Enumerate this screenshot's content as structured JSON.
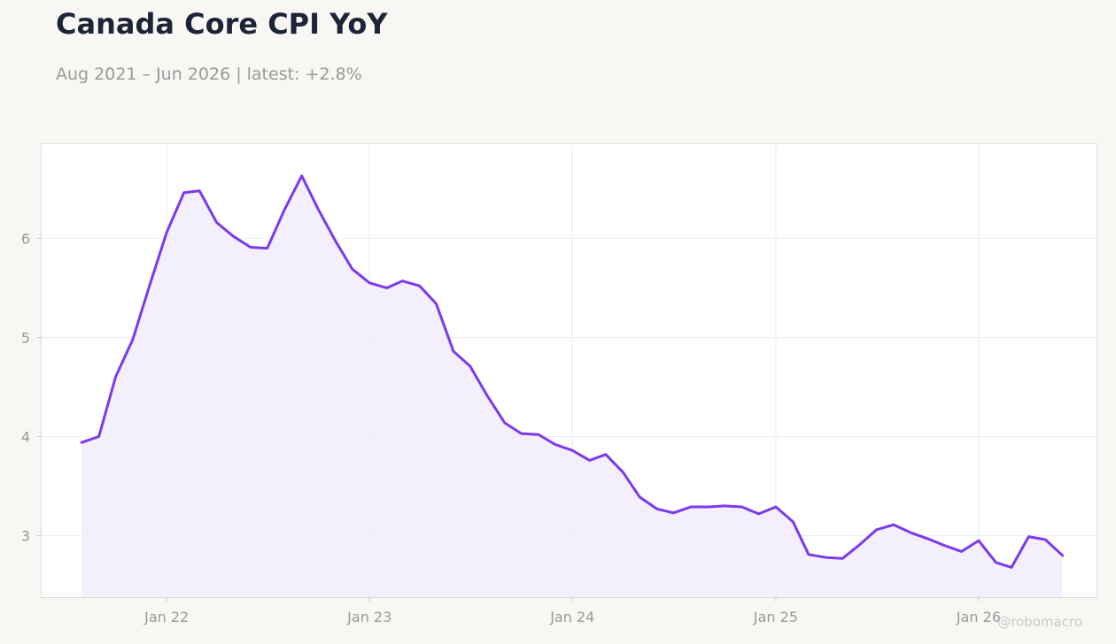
{
  "header": {
    "title": "Canada Core CPI YoY",
    "subtitle": "Aug 2021 – Jun 2026 | latest: +2.8%"
  },
  "watermark": "@robomacro",
  "colors": {
    "line": "#7c3aed",
    "fill": "#f1ecfc",
    "grid": "#eeeeee",
    "background": "#f9f7f4",
    "plot_background": "#ffffff"
  },
  "chart_data": {
    "type": "area",
    "title": "Canada Core CPI YoY",
    "xlabel": "",
    "ylabel": "",
    "ylim": [
      2.38,
      6.95
    ],
    "xlim": [
      "2021-05-21",
      "2026-08-01"
    ],
    "grid": true,
    "x_ticks": [
      {
        "date": "2022-01-01",
        "label": "Jan 22"
      },
      {
        "date": "2023-01-01",
        "label": "Jan 23"
      },
      {
        "date": "2024-01-01",
        "label": "Jan 24"
      },
      {
        "date": "2025-01-01",
        "label": "Jan 25"
      },
      {
        "date": "2026-01-01",
        "label": "Jan 26"
      }
    ],
    "y_ticks": [
      3,
      4,
      5,
      6
    ],
    "series": [
      {
        "x": [
          "2021-08",
          "2021-09",
          "2021-10",
          "2021-11",
          "2021-12",
          "2022-01",
          "2022-02",
          "2022-03",
          "2022-04",
          "2022-05",
          "2022-06",
          "2022-07",
          "2022-08",
          "2022-09",
          "2022-10",
          "2022-11",
          "2022-12",
          "2023-01",
          "2023-02",
          "2023-03",
          "2023-04",
          "2023-05",
          "2023-06",
          "2023-07",
          "2023-08",
          "2023-09",
          "2023-10",
          "2023-11",
          "2023-12",
          "2024-01",
          "2024-02",
          "2024-03",
          "2024-04",
          "2024-05",
          "2024-06",
          "2024-07",
          "2024-08",
          "2024-09",
          "2024-10",
          "2024-11",
          "2024-12",
          "2025-01",
          "2025-02",
          "2025-03",
          "2025-04",
          "2025-05",
          "2025-06",
          "2025-07",
          "2025-08",
          "2025-09",
          "2025-10",
          "2025-11",
          "2025-12",
          "2026-01",
          "2026-02",
          "2026-03",
          "2026-04",
          "2026-05",
          "2026-06"
        ],
        "values": [
          3.94,
          4.0,
          4.6,
          4.98,
          5.52,
          6.06,
          6.46,
          6.48,
          6.16,
          6.02,
          5.91,
          5.9,
          6.29,
          6.63,
          6.29,
          5.97,
          5.69,
          5.55,
          5.5,
          5.57,
          5.52,
          5.34,
          4.86,
          4.71,
          4.41,
          4.14,
          4.03,
          4.02,
          3.92,
          3.86,
          3.76,
          3.82,
          3.64,
          3.39,
          3.27,
          3.23,
          3.29,
          3.29,
          3.3,
          3.29,
          3.22,
          3.29,
          3.14,
          2.81,
          2.78,
          2.77,
          2.91,
          3.06,
          3.11,
          3.03,
          2.97,
          2.9,
          2.84,
          2.95,
          2.73,
          2.68,
          2.99,
          2.96,
          2.8
        ]
      }
    ]
  }
}
